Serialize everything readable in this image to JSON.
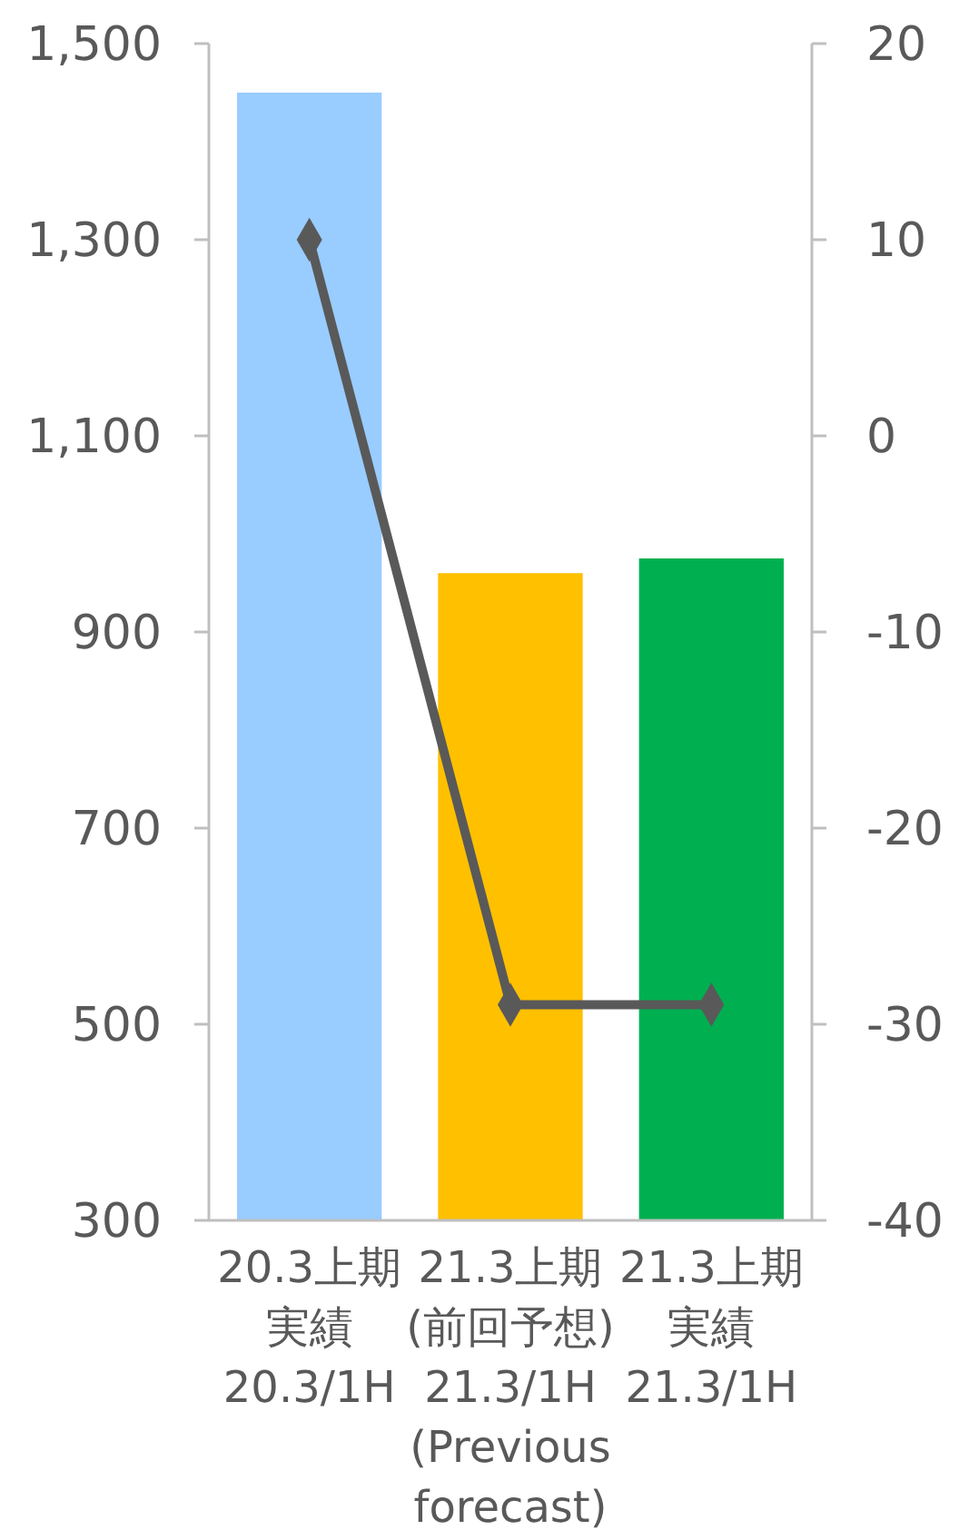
{
  "chart_data": {
    "type": "bar",
    "categories": [
      "20.3上期実績\n20.3/1H",
      "21.3上期\n(前回予想)\n21.3/1H\n(Previous\nforecast)",
      "21.3上期実績\n21.3/1H"
    ],
    "series": [
      {
        "colors": [
          "#99ccff",
          "#ffc000",
          "#00b050"
        ],
        "values": [
          1450,
          960,
          975
        ]
      },
      {
        "type": "line",
        "axis": "y2",
        "color": "#595959",
        "marker": "diamond",
        "line_style": "solid",
        "values": [
          10,
          -29,
          -29
        ]
      }
    ],
    "ylim": [
      300,
      1500
    ],
    "yticks": [
      {
        "value": 300,
        "label": "300"
      },
      {
        "value": 500,
        "label": "500"
      },
      {
        "value": 700,
        "label": "700"
      },
      {
        "value": 900,
        "label": "900"
      },
      {
        "value": 1100,
        "label": "1,100"
      },
      {
        "value": 1300,
        "label": "1,300"
      },
      {
        "value": 1500,
        "label": "1,500"
      }
    ],
    "y2lim": [
      -40,
      20
    ],
    "y2ticks": [
      -40,
      -30,
      -20,
      -10,
      0,
      10,
      20
    ],
    "grid": false
  }
}
